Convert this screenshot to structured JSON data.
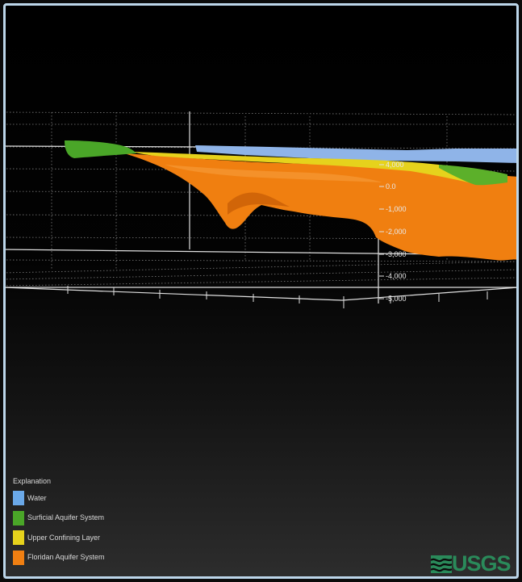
{
  "depth_axis": {
    "ticks": [
      "4,000",
      "0.0",
      "-1,000",
      "-2,000",
      "-3,000",
      "-4,000",
      "-5,000"
    ]
  },
  "legend": {
    "title": "Explanation",
    "items": [
      {
        "label": "Water",
        "color": "#6aa8e8"
      },
      {
        "label": "Surficial Aquifer System",
        "color": "#4aa628"
      },
      {
        "label": "Upper Confining Layer",
        "color": "#e6d21c"
      },
      {
        "label": "Floridan Aquifer System",
        "color": "#f07f12"
      }
    ]
  },
  "logo": {
    "text": "USGS",
    "color": "#2a8a5a"
  }
}
